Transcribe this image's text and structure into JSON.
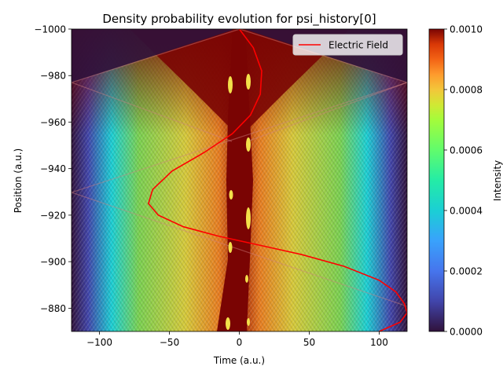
{
  "chart_data": {
    "type": "heatmap",
    "title": "Density probability evolution for psi_history[0]",
    "xlabel": "Time (a.u.)",
    "ylabel": "Position (a.u.)",
    "xlim": [
      -120,
      120
    ],
    "ylim": [
      -1000,
      -870
    ],
    "y_inverted": true,
    "x_ticks": [
      -100,
      -50,
      0,
      50,
      100
    ],
    "x_tick_labels": [
      "−100",
      "−50",
      "0",
      "50",
      "100"
    ],
    "y_ticks": [
      -1000,
      -980,
      -960,
      -940,
      -920,
      -900,
      -880
    ],
    "y_tick_labels": [
      "−1000",
      "−980",
      "−960",
      "−940",
      "−920",
      "−900",
      "−880"
    ],
    "colorbar": {
      "label": "Intensity",
      "colormap": "turbo",
      "range": [
        0,
        0.001
      ],
      "ticks": [
        0,
        0.0002,
        0.0004,
        0.0006,
        0.0008,
        0.001
      ],
      "tick_labels": [
        "0.0000",
        "0.0002",
        "0.0004",
        "0.0006",
        "0.0008",
        "0.0010"
      ]
    },
    "legend": {
      "position": "top-right",
      "entries": [
        "Electric Field"
      ]
    },
    "series": [
      {
        "name": "Electric Field",
        "color": "#ff0000",
        "x": [
          0,
          10,
          16,
          15,
          8,
          -5,
          -25,
          -48,
          -62,
          -65,
          -58,
          -40,
          -15,
          15,
          45,
          75,
          100,
          112,
          118,
          120,
          115,
          100
        ],
        "y": [
          -1000,
          -992,
          -982,
          -972,
          -963,
          -955,
          -947,
          -939,
          -931,
          -925,
          -920,
          -915,
          -911,
          -907,
          -903,
          -898,
          -892,
          -887,
          -882,
          -878,
          -874,
          -870
        ]
      }
    ]
  }
}
